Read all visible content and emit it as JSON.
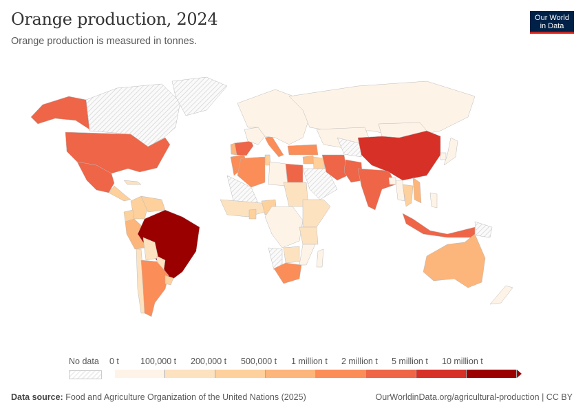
{
  "header": {
    "title": "Orange production, 2024",
    "subtitle": "Orange production is measured in tonnes.",
    "logo_line1": "Our World",
    "logo_line2": "in Data"
  },
  "legend": {
    "no_data_label": "No data",
    "bins": [
      "0 t",
      "100,000 t",
      "200,000 t",
      "500,000 t",
      "1 million t",
      "2 million t",
      "5 million t",
      "10 million t"
    ],
    "colors": [
      "#fef3e7",
      "#fde2c0",
      "#fdd09c",
      "#fcb57a",
      "#fb8d58",
      "#ee6548",
      "#d73027",
      "#9b0000"
    ]
  },
  "map_data": {
    "scale_note": "bin index into legend.colors",
    "regions": {
      "Alaska (United States)": 5,
      "United States": 5,
      "Mexico": 5,
      "Central America": 2,
      "Cuba": 1,
      "Colombia": 2,
      "Venezuela": 2,
      "Peru": 3,
      "Ecuador": 2,
      "Bolivia": 1,
      "Brazil": 7,
      "Paraguay": 1,
      "Uruguay": 2,
      "Argentina": 4,
      "Chile": 1,
      "Spain": 5,
      "Portugal": 3,
      "France": 0,
      "Italy": 4,
      "Greece": 4,
      "Europe (other)": 0,
      "Russia": 0,
      "Turkey": 4,
      "Morocco": 4,
      "Algeria": 4,
      "Tunisia": 2,
      "Libya": 0,
      "Egypt": 5,
      "Sudan": 1,
      "West Africa": 1,
      "Nigeria": 2,
      "Ghana": 2,
      "Central Africa": 0,
      "East Africa": 1,
      "Tanzania": 1,
      "Mozambique": 0,
      "Zimbabwe": 1,
      "South Africa": 4,
      "Madagascar": 0,
      "Iran": 5,
      "Iraq": 2,
      "Syria": 3,
      "Pakistan": 5,
      "India": 5,
      "Bangladesh": 0,
      "China": 6,
      "Mongolia": 0,
      "Kazakhstan": 0,
      "Japan": 0,
      "South Korea": 0,
      "Vietnam": 3,
      "Thailand": 2,
      "Myanmar": 0,
      "Philippines": 0,
      "Indonesia": 5,
      "Australia": 3,
      "New Zealand": 0
    },
    "no_data": [
      "Canada",
      "Greenland",
      "Saudi Arabia",
      "Central Asia",
      "Sahara/Mali",
      "Namibia",
      "Papua New Guinea"
    ]
  },
  "footer": {
    "source_label": "Data source:",
    "source": "Food and Agriculture Organization of the United Nations (2025)",
    "url": "OurWorldinData.org/agricultural-production | CC BY"
  }
}
